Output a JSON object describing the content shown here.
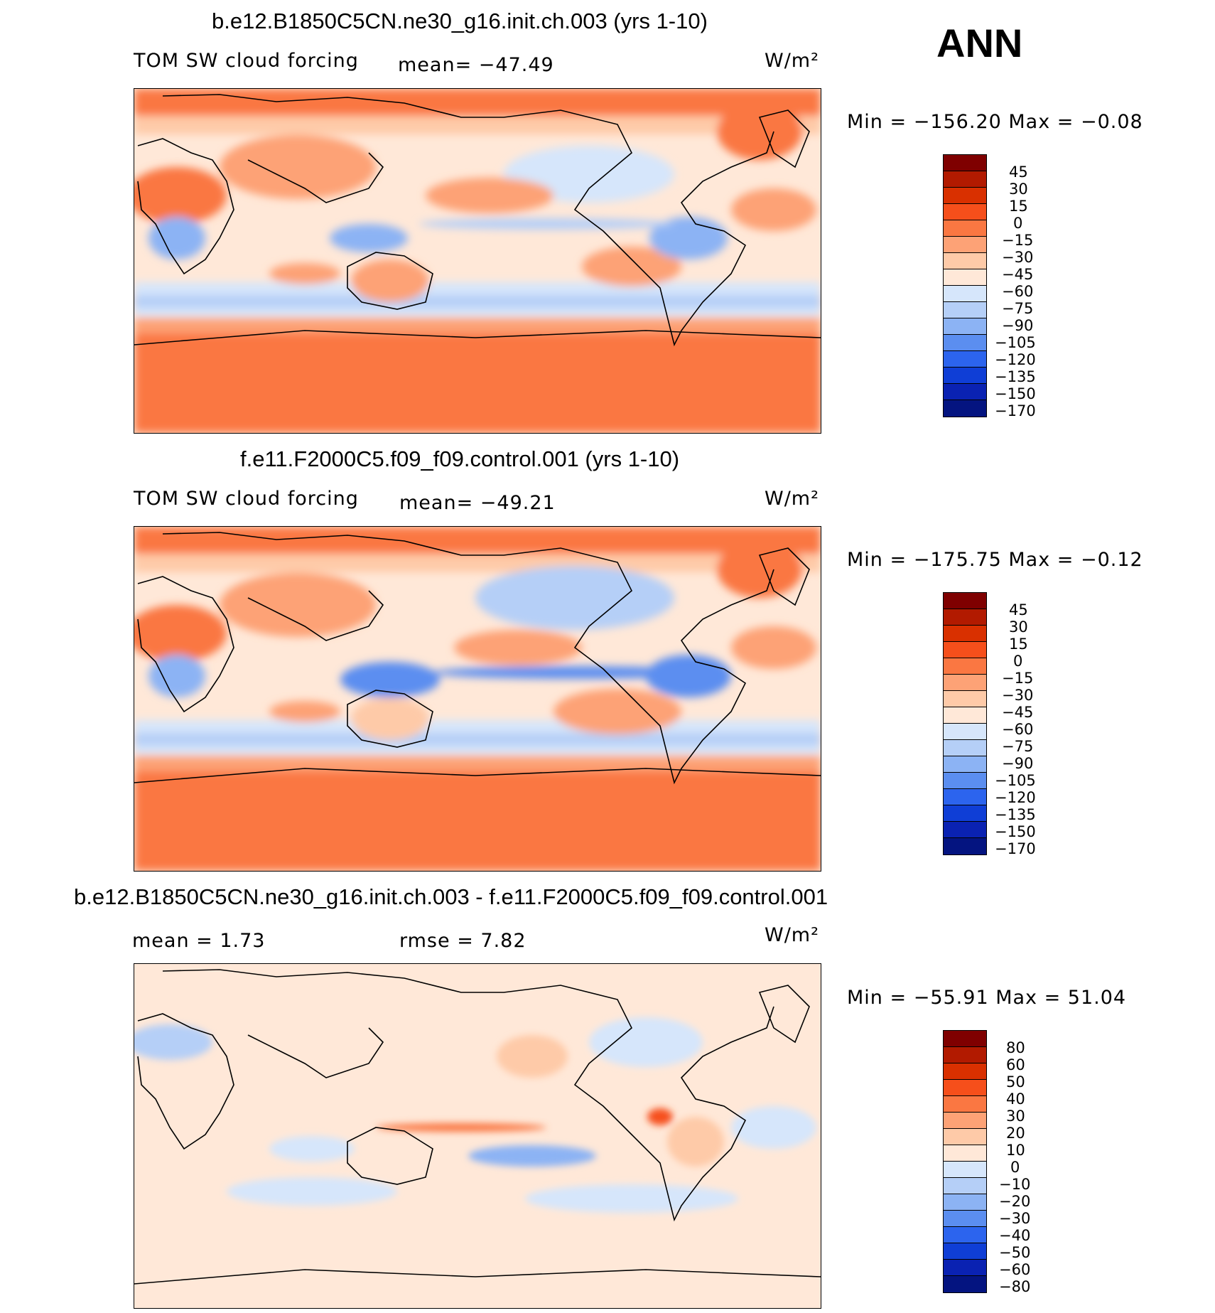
{
  "season": "ANN",
  "units": "W/m²",
  "panels": [
    {
      "title": "b.e12.B1850C5CN.ne30_g16.init.ch.003 (yrs 1-10)",
      "field": "TOM SW cloud forcing",
      "stat": "mean= −47.49",
      "minmax": "Min = −156.20 Max =  −0.08",
      "cbar_labels": [
        "45",
        "30",
        "15",
        "0",
        "−15",
        "−30",
        "−45",
        "−60",
        "−75",
        "−90",
        "−105",
        "−120",
        "−135",
        "−150",
        "−170"
      ]
    },
    {
      "title": "f.e11.F2000C5.f09_f09.control.001 (yrs 1-10)",
      "field": "TOM SW cloud forcing",
      "stat": "mean= −49.21",
      "minmax": "Min = −175.75 Max =  −0.12",
      "cbar_labels": [
        "45",
        "30",
        "15",
        "0",
        "−15",
        "−30",
        "−45",
        "−60",
        "−75",
        "−90",
        "−105",
        "−120",
        "−135",
        "−150",
        "−170"
      ]
    },
    {
      "title": "b.e12.B1850C5CN.ne30_g16.init.ch.003 - f.e11.F2000C5.f09_f09.control.001",
      "mean": "mean =    1.73",
      "rmse": "rmse =    7.82",
      "minmax": "Min = −55.91 Max =   51.04",
      "cbar_labels": [
        "80",
        "60",
        "50",
        "40",
        "30",
        "20",
        "10",
        "0",
        "−10",
        "−20",
        "−30",
        "−40",
        "−50",
        "−60",
        "−80"
      ]
    }
  ],
  "colors": {
    "scale": [
      "#7f0000",
      "#b21a00",
      "#d93000",
      "#f64f1b",
      "#fa7742",
      "#fda276",
      "#fecaa8",
      "#ffe8d8",
      "#d6e6fb",
      "#b5cff7",
      "#8cb3f4",
      "#5b8ef0",
      "#2c64ee",
      "#0f3ed6",
      "#0a22b2",
      "#041480"
    ]
  }
}
